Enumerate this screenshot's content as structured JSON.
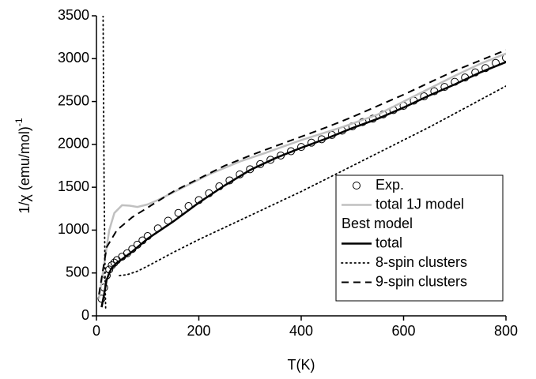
{
  "chart_data": {
    "type": "line",
    "xlabel": "T(K)",
    "ylabel": {
      "text": "1/χ (emu/mol)",
      "superscript": "-1"
    },
    "xlim": [
      0,
      800
    ],
    "ylim": [
      0,
      3500
    ],
    "xticks": [
      0,
      200,
      400,
      600,
      800
    ],
    "yticks": [
      0,
      500,
      1000,
      1500,
      2000,
      2500,
      3000,
      3500
    ],
    "legend_heading": "Best model",
    "series": [
      {
        "name": "Exp.",
        "color": "#000000",
        "style": "markers",
        "x": [
          10,
          15,
          20,
          25,
          30,
          35,
          40,
          50,
          60,
          70,
          80,
          90,
          100,
          120,
          140,
          160,
          180,
          200,
          220,
          240,
          260,
          280,
          300,
          320,
          340,
          360,
          380,
          400,
          420,
          440,
          460,
          480,
          500,
          520,
          540,
          560,
          580,
          600,
          620,
          640,
          660,
          680,
          700,
          720,
          740,
          760,
          780,
          800
        ],
        "values": [
          200,
          330,
          470,
          540,
          590,
          620,
          650,
          690,
          730,
          780,
          830,
          880,
          930,
          1020,
          1110,
          1200,
          1280,
          1350,
          1430,
          1510,
          1580,
          1650,
          1710,
          1770,
          1820,
          1870,
          1920,
          1970,
          2020,
          2060,
          2110,
          2160,
          2210,
          2260,
          2300,
          2350,
          2400,
          2450,
          2510,
          2560,
          2620,
          2670,
          2730,
          2780,
          2840,
          2890,
          2950,
          3010
        ]
      },
      {
        "name": "total 1J model",
        "color": "#c0c0c0",
        "style": "solid",
        "x": [
          5,
          15,
          25,
          35,
          50,
          65,
          80,
          100,
          120,
          170,
          220,
          280,
          330,
          400,
          480,
          550,
          600,
          650,
          700,
          750,
          800
        ],
        "values": [
          200,
          600,
          1000,
          1200,
          1290,
          1285,
          1270,
          1300,
          1350,
          1500,
          1650,
          1800,
          1900,
          2050,
          2200,
          2350,
          2500,
          2650,
          2800,
          2940,
          3060
        ]
      },
      {
        "name": "total",
        "color": "#000000",
        "style": "solid",
        "x": [
          10,
          15,
          20,
          25,
          30,
          40,
          50,
          70,
          100,
          150,
          200,
          250,
          300,
          350,
          400,
          450,
          500,
          550,
          600,
          650,
          700,
          750,
          800
        ],
        "values": [
          100,
          250,
          420,
          500,
          560,
          620,
          660,
          750,
          900,
          1100,
          1320,
          1520,
          1700,
          1840,
          1960,
          2070,
          2190,
          2300,
          2430,
          2570,
          2700,
          2840,
          2960
        ]
      },
      {
        "name": "8-spin clusters",
        "color": "#000000",
        "style": "dotted",
        "x": [
          13,
          14,
          15,
          16,
          17,
          18,
          30,
          45,
          60,
          80,
          100,
          150,
          200,
          250,
          300,
          350,
          400,
          450,
          500,
          550,
          600,
          650,
          700,
          750,
          800
        ],
        "values": [
          3500,
          2400,
          1500,
          900,
          400,
          60,
          null,
          470,
          480,
          520,
          580,
          740,
          890,
          1030,
          1170,
          1310,
          1450,
          1600,
          1750,
          1900,
          2050,
          2200,
          2360,
          2520,
          2680
        ]
      },
      {
        "name": "9-spin clusters",
        "color": "#000000",
        "style": "dashed",
        "x": [
          5,
          20,
          40,
          70,
          110,
          150,
          200,
          250,
          300,
          350,
          400,
          450,
          500,
          550,
          600,
          650,
          700,
          750,
          800
        ],
        "values": [
          250,
          800,
          1000,
          1150,
          1300,
          1450,
          1600,
          1750,
          1870,
          1980,
          2090,
          2200,
          2320,
          2450,
          2580,
          2720,
          2860,
          2980,
          3100
        ]
      }
    ]
  }
}
